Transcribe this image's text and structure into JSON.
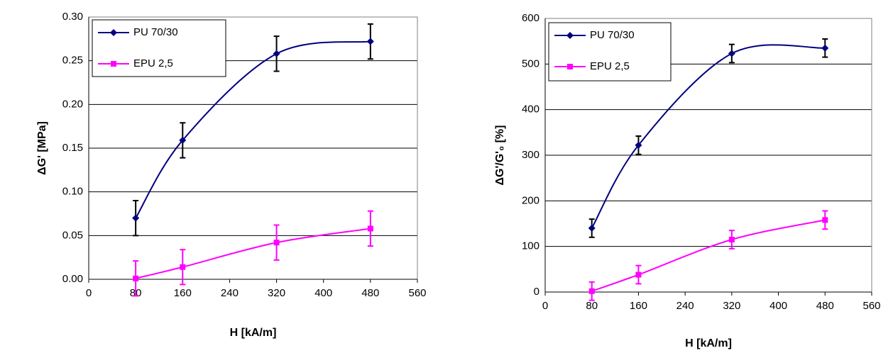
{
  "chart_data": [
    {
      "type": "line",
      "y_label": "ΔG' [MPa]",
      "x_label": "H [kA/m]",
      "xlim": [
        0,
        560
      ],
      "xticks": [
        0,
        80,
        160,
        240,
        320,
        400,
        480,
        560
      ],
      "ylim": [
        0,
        0.3
      ],
      "yticks": [
        {
          "value": 0,
          "label": "0.00"
        },
        {
          "value": 0.05,
          "label": "0.05"
        },
        {
          "value": 0.1,
          "label": "0.10"
        },
        {
          "value": 0.15,
          "label": "0.15"
        },
        {
          "value": 0.2,
          "label": "0.20"
        },
        {
          "value": 0.25,
          "label": "0.25"
        },
        {
          "value": 0.3,
          "label": "0.30"
        }
      ],
      "grid": true,
      "legend": "top-left",
      "x": [
        80,
        160,
        320,
        480
      ],
      "series": [
        {
          "name": "PU 70/30",
          "color": "#000080",
          "marker": "diamond",
          "error_color": "#000000",
          "values": [
            0.07,
            0.159,
            0.258,
            0.272
          ],
          "errors": [
            0.02,
            0.02,
            0.02,
            0.02
          ]
        },
        {
          "name": "EPU 2,5",
          "color": "#ff00ff",
          "marker": "square",
          "error_color": "#ff00ff",
          "values": [
            0.001,
            0.014,
            0.042,
            0.058
          ],
          "errors": [
            0.02,
            0.02,
            0.02,
            0.02
          ]
        }
      ]
    },
    {
      "type": "line",
      "y_label": "ΔG'/G'₀ [%]",
      "x_label": "H [kA/m]",
      "xlim": [
        0,
        560
      ],
      "xticks": [
        0,
        80,
        160,
        240,
        320,
        400,
        480,
        560
      ],
      "ylim": [
        0,
        600
      ],
      "yticks": [
        0,
        100,
        200,
        300,
        400,
        500,
        600
      ],
      "grid": true,
      "legend": "top-left",
      "x": [
        80,
        160,
        320,
        480
      ],
      "series": [
        {
          "name": "PU 70/30",
          "color": "#000080",
          "marker": "diamond",
          "error_color": "#000000",
          "values": [
            140,
            322,
            523,
            535
          ],
          "errors": [
            20,
            20,
            20,
            20
          ]
        },
        {
          "name": "EPU 2,5",
          "color": "#ff00ff",
          "marker": "square",
          "error_color": "#ff00ff",
          "values": [
            2,
            38,
            115,
            158
          ],
          "errors": [
            20,
            20,
            20,
            20
          ]
        }
      ]
    }
  ]
}
